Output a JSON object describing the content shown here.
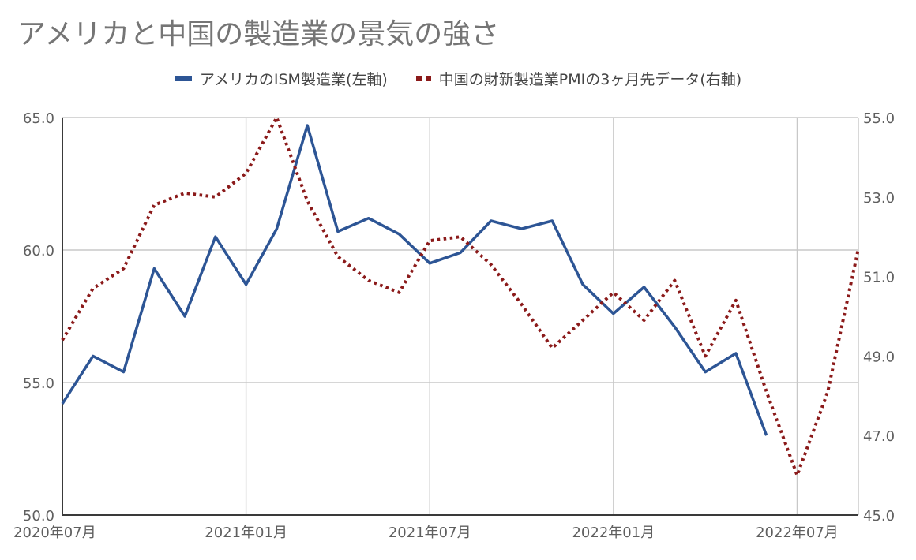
{
  "chart_data": {
    "type": "line",
    "title": "アメリカと中国の製造業の景気の強さ",
    "legend_position": "top-center",
    "grid": true,
    "x_tick_labels": [
      "2020年07月",
      "2021年01月",
      "2021年07月",
      "2022年01月",
      "2022年07月"
    ],
    "x_months": [
      "2020-07",
      "2020-08",
      "2020-09",
      "2020-10",
      "2020-11",
      "2020-12",
      "2021-01",
      "2021-02",
      "2021-03",
      "2021-04",
      "2021-05",
      "2021-06",
      "2021-07",
      "2021-08",
      "2021-09",
      "2021-10",
      "2021-11",
      "2021-12",
      "2022-01",
      "2022-02",
      "2022-03",
      "2022-04",
      "2022-05",
      "2022-06",
      "2022-07",
      "2022-08",
      "2022-09"
    ],
    "left_axis": {
      "ylim": [
        50.0,
        65.0
      ],
      "ticks": [
        "50.0",
        "55.0",
        "60.0",
        "65.0"
      ]
    },
    "right_axis": {
      "ylim": [
        45.0,
        55.0
      ],
      "ticks": [
        "45.0",
        "47.0",
        "49.0",
        "51.0",
        "53.0",
        "55.0"
      ]
    },
    "series": [
      {
        "name": "アメリカのISM製造業(左軸)",
        "axis": "left",
        "color": "#2d5595",
        "style": "solid",
        "values": [
          54.2,
          56.0,
          55.4,
          59.3,
          57.5,
          60.5,
          58.7,
          60.8,
          64.7,
          60.7,
          61.2,
          60.6,
          59.5,
          59.9,
          61.1,
          60.8,
          61.1,
          58.7,
          57.6,
          58.6,
          57.1,
          55.4,
          56.1,
          53.0,
          null,
          null,
          null
        ]
      },
      {
        "name": "中国の財新製造業PMIの3ヶ月先データ(右軸)",
        "axis": "right",
        "color": "#8b1a1a",
        "style": "dotted",
        "values": [
          49.4,
          50.7,
          51.2,
          52.8,
          53.1,
          53.0,
          53.6,
          55.0,
          52.9,
          51.5,
          50.9,
          50.6,
          51.9,
          52.0,
          51.3,
          50.3,
          49.2,
          49.9,
          50.6,
          49.9,
          50.9,
          49.0,
          50.4,
          48.1,
          46.0,
          48.1,
          51.7
        ]
      }
    ]
  }
}
